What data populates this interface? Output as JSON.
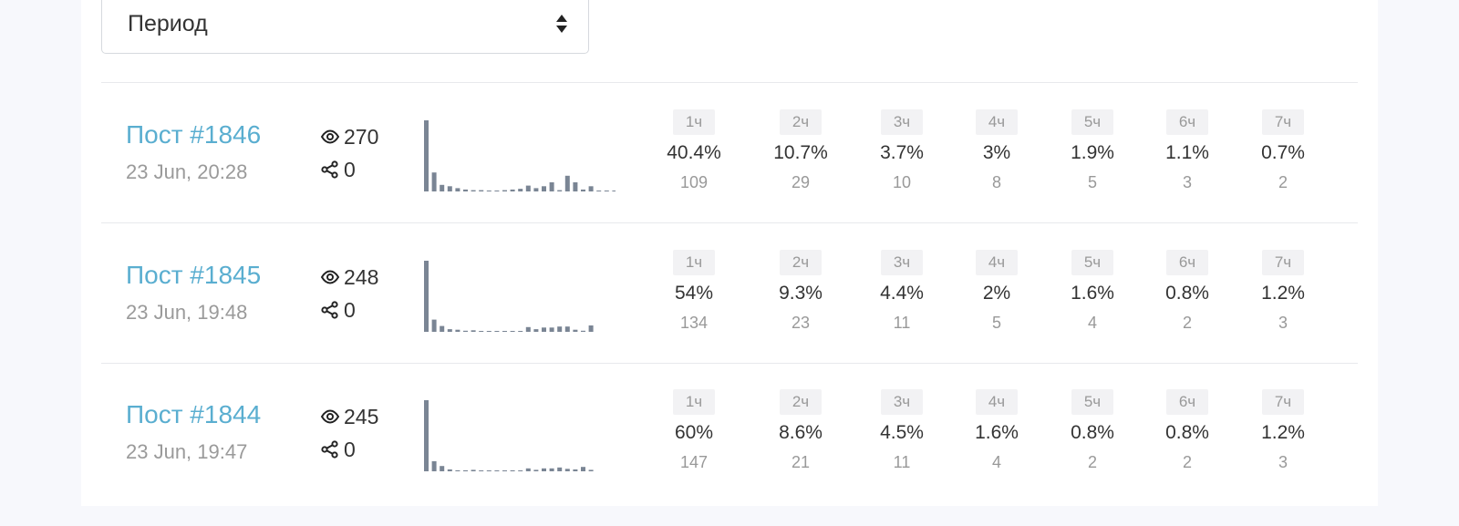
{
  "period_select": {
    "label": "Период"
  },
  "posts": [
    {
      "title": "Пост #1846",
      "date": "23 Jun, 20:28",
      "views": "270",
      "shares": "0",
      "hours": [
        {
          "label": "1ч",
          "pct": "40.4%",
          "count": "109"
        },
        {
          "label": "2ч",
          "pct": "10.7%",
          "count": "29"
        },
        {
          "label": "3ч",
          "pct": "3.7%",
          "count": "10"
        },
        {
          "label": "4ч",
          "pct": "3%",
          "count": "8"
        },
        {
          "label": "5ч",
          "pct": "1.9%",
          "count": "5"
        },
        {
          "label": "6ч",
          "pct": "1.1%",
          "count": "3"
        },
        {
          "label": "7ч",
          "pct": "0.7%",
          "count": "2"
        }
      ],
      "sparkline": [
        109,
        29,
        10,
        8,
        5,
        3,
        2,
        2,
        1,
        1,
        2,
        3,
        4,
        9,
        5,
        8,
        14,
        2,
        24,
        14,
        3,
        8,
        1,
        1,
        1
      ]
    },
    {
      "title": "Пост #1845",
      "date": "23 Jun, 19:48",
      "views": "248",
      "shares": "0",
      "hours": [
        {
          "label": "1ч",
          "pct": "54%",
          "count": "134"
        },
        {
          "label": "2ч",
          "pct": "9.3%",
          "count": "23"
        },
        {
          "label": "3ч",
          "pct": "4.4%",
          "count": "11"
        },
        {
          "label": "4ч",
          "pct": "2%",
          "count": "5"
        },
        {
          "label": "5ч",
          "pct": "1.6%",
          "count": "4"
        },
        {
          "label": "6ч",
          "pct": "0.8%",
          "count": "2"
        },
        {
          "label": "7ч",
          "pct": "1.2%",
          "count": "3"
        }
      ],
      "sparkline": [
        134,
        23,
        11,
        5,
        4,
        2,
        3,
        1,
        1,
        1,
        1,
        1,
        1,
        9,
        5,
        8,
        8,
        10,
        10,
        4,
        2,
        12
      ]
    },
    {
      "title": "Пост #1844",
      "date": "23 Jun, 19:47",
      "views": "245",
      "shares": "0",
      "hours": [
        {
          "label": "1ч",
          "pct": "60%",
          "count": "147"
        },
        {
          "label": "2ч",
          "pct": "8.6%",
          "count": "21"
        },
        {
          "label": "3ч",
          "pct": "4.5%",
          "count": "11"
        },
        {
          "label": "4ч",
          "pct": "1.6%",
          "count": "4"
        },
        {
          "label": "5ч",
          "pct": "0.8%",
          "count": "2"
        },
        {
          "label": "6ч",
          "pct": "0.8%",
          "count": "2"
        },
        {
          "label": "7ч",
          "pct": "1.2%",
          "count": "3"
        }
      ],
      "sparkline": [
        147,
        21,
        11,
        4,
        2,
        2,
        3,
        1,
        1,
        1,
        1,
        2,
        1,
        6,
        3,
        6,
        6,
        8,
        5,
        4,
        9,
        3
      ]
    }
  ],
  "colors": {
    "link": "#5aaed0",
    "bar": "#7a8594",
    "text_muted": "#999999"
  },
  "icons": {
    "views": "eye-icon",
    "shares": "share-icon",
    "select_arrows": "sort-arrows-icon"
  }
}
